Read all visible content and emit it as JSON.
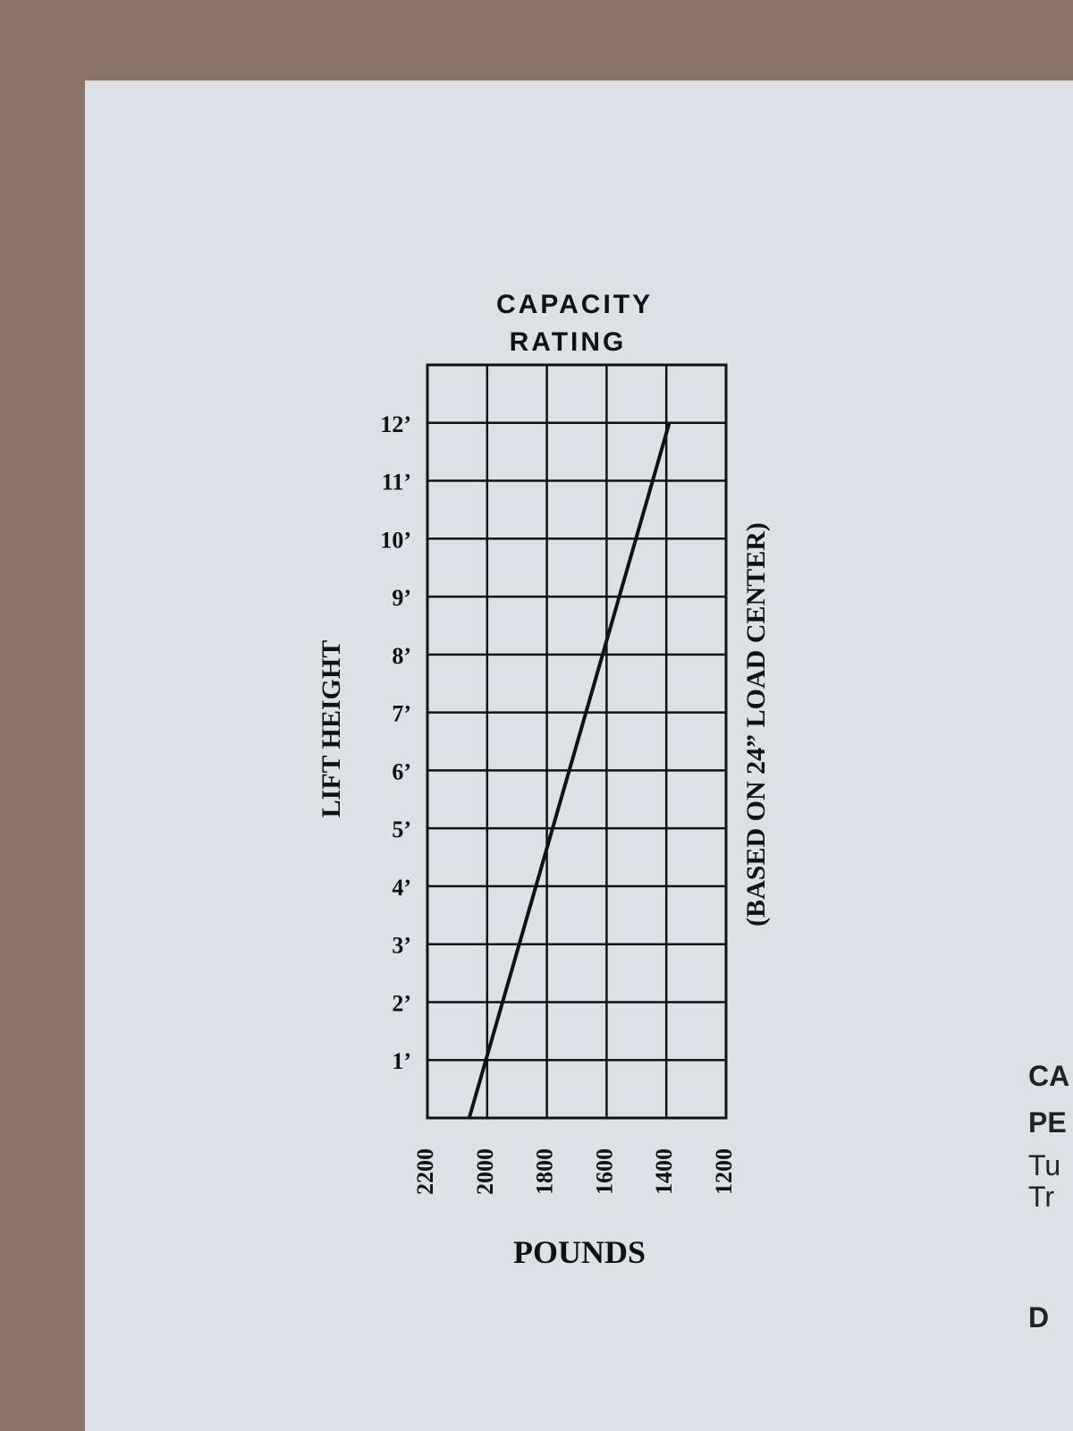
{
  "chart_data": {
    "type": "line",
    "title": "CAPACITY RATING",
    "x_label": "POUNDS",
    "y_label": "LIFT HEIGHT",
    "annotation": "(BASED ON 24” LOAD CENTER)",
    "x": [
      2060,
      1390
    ],
    "values": [
      0,
      12
    ],
    "color": "#111111",
    "xlim": [
      2200,
      1200
    ],
    "xticks": [
      2200,
      2000,
      1800,
      1600,
      1400,
      1200
    ],
    "ylim": [
      0,
      13
    ],
    "yticks": [
      {
        "value": 1,
        "label": "1’"
      },
      {
        "value": 2,
        "label": "2’"
      },
      {
        "value": 3,
        "label": "3’"
      },
      {
        "value": 4,
        "label": "4’"
      },
      {
        "value": 5,
        "label": "5’"
      },
      {
        "value": 6,
        "label": "6’"
      },
      {
        "value": 7,
        "label": "7’"
      },
      {
        "value": 8,
        "label": "8’"
      },
      {
        "value": 9,
        "label": "9’"
      },
      {
        "value": 10,
        "label": "10’"
      },
      {
        "value": 11,
        "label": "11’"
      },
      {
        "value": 12,
        "label": "12’"
      }
    ],
    "grid": true
  },
  "margin_text": [
    "CA",
    "PE",
    "Tu",
    "Tr",
    "D"
  ]
}
